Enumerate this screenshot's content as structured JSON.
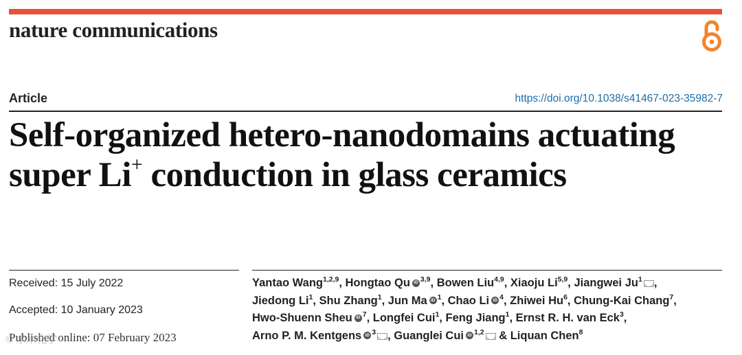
{
  "header": {
    "journal": "nature communications",
    "open_access_icon": "open-access-lock-icon",
    "accent_color": "#e8503a"
  },
  "article": {
    "type": "Article",
    "doi": "https://doi.org/10.1038/s41467-023-35982-7",
    "title_part1": "Self-organized hetero-nanodomains actuating super Li",
    "title_sup": "+",
    "title_part2": " conduction in glass ceramics"
  },
  "dates": {
    "received": "Received: 15 July 2022",
    "accepted": "Accepted: 10 January 2023",
    "published": "Published online: 07 February 2023"
  },
  "authors": [
    [
      {
        "name": "Yantao Wang",
        "sup": "1,2,9",
        "orcid": false,
        "mail": false,
        "sep": ", "
      },
      {
        "name": "Hongtao Qu",
        "sup": "3,9",
        "orcid": true,
        "mail": false,
        "sep": ", "
      },
      {
        "name": "Bowen Liu",
        "sup": "4,9",
        "orcid": false,
        "mail": false,
        "sep": ", "
      },
      {
        "name": "Xiaoju Li",
        "sup": "5,9",
        "orcid": false,
        "mail": false,
        "sep": ", "
      },
      {
        "name": "Jiangwei Ju",
        "sup": "1",
        "orcid": false,
        "mail": true,
        "sep": ","
      }
    ],
    [
      {
        "name": "Jiedong Li",
        "sup": "1",
        "orcid": false,
        "mail": false,
        "sep": ", "
      },
      {
        "name": "Shu Zhang",
        "sup": "1",
        "orcid": false,
        "mail": false,
        "sep": ", "
      },
      {
        "name": "Jun Ma",
        "sup": "1",
        "orcid": true,
        "mail": false,
        "sep": ", "
      },
      {
        "name": "Chao Li",
        "sup": "4",
        "orcid": true,
        "mail": false,
        "sep": ", "
      },
      {
        "name": "Zhiwei Hu",
        "sup": "6",
        "orcid": false,
        "mail": false,
        "sep": ", "
      },
      {
        "name": "Chung-Kai Chang",
        "sup": "7",
        "orcid": false,
        "mail": false,
        "sep": ","
      }
    ],
    [
      {
        "name": "Hwo-Shuenn Sheu",
        "sup": "7",
        "orcid": true,
        "mail": false,
        "sep": ", "
      },
      {
        "name": "Longfei Cui",
        "sup": "1",
        "orcid": false,
        "mail": false,
        "sep": ", "
      },
      {
        "name": "Feng Jiang",
        "sup": "1",
        "orcid": false,
        "mail": false,
        "sep": ", "
      },
      {
        "name": "Ernst R. H. van Eck",
        "sup": "3",
        "orcid": false,
        "mail": false,
        "sep": ","
      }
    ],
    [
      {
        "name": "Arno P. M. Kentgens",
        "sup": "3",
        "orcid": true,
        "mail": true,
        "sep": ", "
      },
      {
        "name": "Guanglei Cui",
        "sup": "1,2",
        "orcid": true,
        "mail": true,
        "sep": " & "
      },
      {
        "name": "Liquan Chen",
        "sup": "8",
        "orcid": false,
        "mail": false,
        "sep": ""
      }
    ]
  ],
  "watermark": "© 水木化学"
}
